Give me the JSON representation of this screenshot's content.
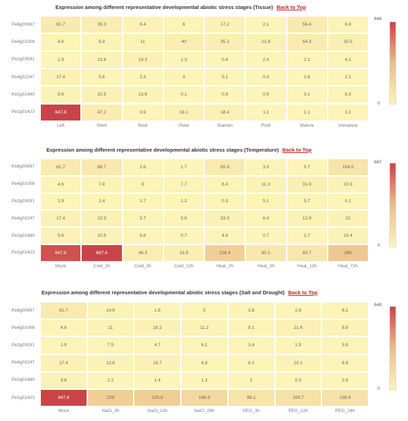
{
  "sections": [
    {
      "title": "Expression among different representative developmental abiotic stress stages (Tissue)",
      "link": "Back to Top",
      "legend_max": "648",
      "legend_min": "0"
    },
    {
      "title": "Expression among different representative developmental abiotic stress stages (Temperature)",
      "link": "Back to Top",
      "legend_max": "687",
      "legend_min": "0"
    },
    {
      "title": "Expression among different representative developmental abiotic stress stages (Salt and Drought)",
      "link": "Back to Top",
      "legend_max": "648",
      "legend_min": "0"
    }
  ],
  "colors": {
    "low": "#fcf4b8",
    "high": "#c94449"
  },
  "chart_data": [
    {
      "type": "heatmap",
      "title": "Expression among different representative developmental abiotic stress stages (Tissue)",
      "rows": [
        "Pe6g00697",
        "Pe4g01006",
        "Pe2g03091",
        "Pe4g02247",
        "Pe2g01460",
        "Pe1g01423"
      ],
      "columns": [
        "Left",
        "Stem",
        "Root",
        "Petal",
        "Stamen",
        "Pistil",
        "Mature",
        "Immature"
      ],
      "values": [
        [
          61.7,
          39.3,
          9.4,
          6,
          17.2,
          2.1,
          56.4,
          6.6
        ],
        [
          4.6,
          6.9,
          11,
          40,
          35.1,
          21.8,
          54.3,
          30.5
        ],
        [
          1.9,
          13.8,
          19.3,
          1.3,
          0.4,
          2.4,
          2.1,
          4.1
        ],
        [
          17.4,
          5.6,
          2.3,
          4,
          5.1,
          0.3,
          1.8,
          2.1
        ],
        [
          9.6,
          20.5,
          13.8,
          0.1,
          0.9,
          0.9,
          0.1,
          6.3
        ],
        [
          647.8,
          47.2,
          0.9,
          18.1,
          18.4,
          1.1,
          1.1,
          3.1
        ]
      ],
      "scale": [
        0,
        648
      ]
    },
    {
      "type": "heatmap",
      "title": "Expression among different representative developmental abiotic stress stages (Temperature)",
      "rows": [
        "Pe6g00697",
        "Pe4g01006",
        "Pe2g03091",
        "Pe4g02247",
        "Pe2g01460",
        "Pe1g01423"
      ],
      "columns": [
        "Mock",
        "Cold_2h",
        "Cold_3h",
        "Cold_12h",
        "Heat_2h",
        "Heat_3h",
        "Heat_12h",
        "Heat_72h"
      ],
      "values": [
        [
          61.7,
          68.7,
          2.6,
          1.7,
          65.9,
          3.3,
          0.7,
          104.5
        ],
        [
          4.6,
          7.8,
          6,
          7.7,
          8.4,
          11.3,
          31.9,
          10.5
        ],
        [
          1.9,
          1.4,
          1.7,
          1.2,
          0.3,
          5.1,
          5.7,
          0.1
        ],
        [
          17.4,
          23.3,
          5.7,
          5.6,
          23.3,
          6.4,
          12.9,
          22
        ],
        [
          9.6,
          10.5,
          0.6,
          0.7,
          4.8,
          0.7,
          2.7,
          15.4
        ],
        [
          647.8,
          687.4,
          46.3,
          33.9,
          228.4,
          80.1,
          83.7,
          280
        ]
      ],
      "scale": [
        0,
        687
      ]
    },
    {
      "type": "heatmap",
      "title": "Expression among different representative developmental abiotic stress stages (Salt and Drought)",
      "rows": [
        "Pe6g00697",
        "Pe4g01006",
        "Pe2g03091",
        "Pe4g02247",
        "Pe2g01460",
        "Pe1g01423"
      ],
      "columns": [
        "Mock",
        "NaCl_3h",
        "NaCl_12h",
        "NaCl_24h",
        "PEG_3h",
        "PEG_12h",
        "PEG_24h"
      ],
      "values": [
        [
          61.7,
          14.6,
          1.8,
          5,
          3.8,
          2.8,
          6.1
        ],
        [
          4.6,
          11,
          18.2,
          11.2,
          8.1,
          21.6,
          9.9
        ],
        [
          1.9,
          7.5,
          4.7,
          6.1,
          3.4,
          1.9,
          3.9
        ],
        [
          17.4,
          13.6,
          15.7,
          6.9,
          8.2,
          10.1,
          6.9
        ],
        [
          9.6,
          2.2,
          1.4,
          1.3,
          1,
          0.3,
          0.9
        ],
        [
          647.8,
          229,
          225.6,
          166.9,
          98.1,
          109.7,
          106.9
        ]
      ],
      "scale": [
        0,
        648
      ]
    }
  ]
}
